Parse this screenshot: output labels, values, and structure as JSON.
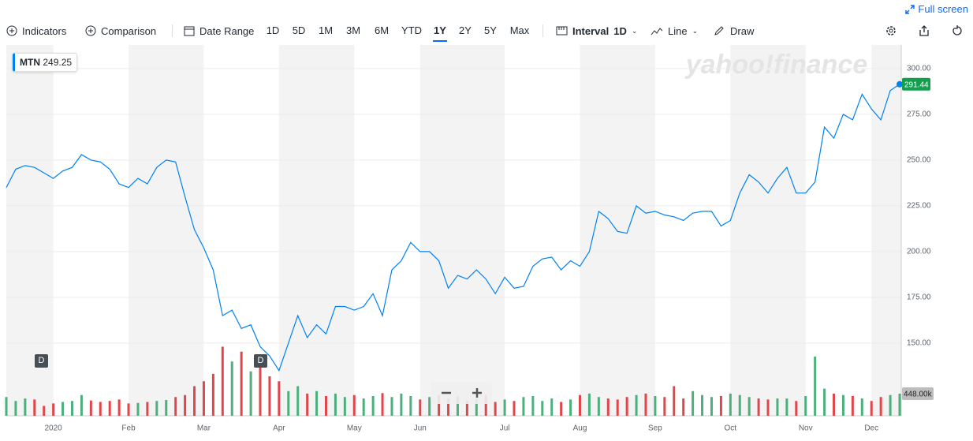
{
  "toolbar": {
    "indicators": "Indicators",
    "comparison": "Comparison",
    "date_range": {
      "label": "Date Range",
      "options": [
        "1D",
        "5D",
        "1M",
        "3M",
        "6M",
        "YTD",
        "1Y",
        "2Y",
        "5Y",
        "Max"
      ],
      "selected": "1Y"
    },
    "interval": {
      "label": "Interval",
      "value": "1D"
    },
    "chart_type": "Line",
    "draw": "Draw",
    "full_screen": "Full screen"
  },
  "watermark": "yahoo!finance",
  "tooltip": {
    "symbol": "MTN",
    "value": "249.25"
  },
  "events": [
    {
      "label": "D"
    },
    {
      "label": "D"
    }
  ],
  "chart_data": {
    "type": "line",
    "categories": [
      null,
      null,
      null,
      null,
      null,
      "2020",
      null,
      null,
      null,
      null,
      null,
      null,
      null,
      "Feb",
      null,
      null,
      null,
      null,
      null,
      null,
      null,
      "Mar",
      null,
      null,
      null,
      null,
      null,
      null,
      null,
      "Apr",
      null,
      null,
      null,
      null,
      null,
      null,
      null,
      "May",
      null,
      null,
      null,
      null,
      null,
      null,
      "Jun",
      null,
      null,
      null,
      null,
      null,
      null,
      null,
      null,
      "Jul",
      null,
      null,
      null,
      null,
      null,
      null,
      null,
      "Aug",
      null,
      null,
      null,
      null,
      null,
      null,
      null,
      "Sep",
      null,
      null,
      null,
      null,
      null,
      null,
      null,
      "Oct",
      null,
      null,
      null,
      null,
      null,
      null,
      null,
      "Nov",
      null,
      null,
      null,
      null,
      null,
      null,
      "Dec",
      null,
      null,
      null
    ],
    "series": [
      {
        "name": "MTN",
        "color": "#0081f2",
        "values": [
          235,
          245,
          247,
          246,
          243,
          240,
          244,
          246,
          253,
          250,
          249,
          245,
          237,
          235,
          240,
          237,
          246,
          250,
          249,
          230,
          212,
          202,
          190,
          165,
          168,
          158,
          160,
          148,
          143,
          135,
          150,
          165,
          153,
          160,
          155,
          170,
          170,
          168,
          170,
          177,
          165,
          190,
          195,
          205,
          200,
          200,
          195,
          180,
          187,
          185,
          190,
          185,
          177,
          186,
          180,
          181,
          192,
          196,
          197,
          190,
          195,
          192,
          200,
          222,
          218,
          211,
          210,
          225,
          221,
          222,
          220,
          219,
          217,
          221,
          222,
          222,
          214,
          217,
          232,
          242,
          238,
          232,
          240,
          246,
          232,
          232,
          238,
          268,
          262,
          275,
          272,
          286,
          278,
          272,
          288,
          291.44
        ]
      },
      {
        "name": "Volume",
        "axis": "y2",
        "up_color": "#4caf7d",
        "down_color": "#e0474c",
        "values": [
          380000,
          300000,
          350000,
          330000,
          200000,
          250000,
          280000,
          300000,
          420000,
          310000,
          280000,
          300000,
          330000,
          250000,
          260000,
          280000,
          300000,
          320000,
          380000,
          420000,
          600000,
          700000,
          850000,
          1400000,
          1100000,
          1300000,
          900000,
          1000000,
          800000,
          700000,
          500000,
          600000,
          450000,
          500000,
          400000,
          450000,
          380000,
          420000,
          350000,
          400000,
          460000,
          380000,
          450000,
          400000,
          330000,
          380000,
          420000,
          350000,
          400000,
          300000,
          350000,
          420000,
          280000,
          330000,
          300000,
          380000,
          400000,
          300000,
          350000,
          280000,
          330000,
          420000,
          450000,
          380000,
          350000,
          330000,
          380000,
          420000,
          450000,
          400000,
          380000,
          600000,
          350000,
          500000,
          420000,
          380000,
          400000,
          450000,
          420000,
          380000,
          350000,
          330000,
          350000,
          350000,
          300000,
          400000,
          1200000,
          550000,
          450000,
          420000,
          400000,
          350000,
          300000,
          380000,
          420000,
          448000
        ]
      }
    ],
    "ylim": [
      110.3,
      312.9
    ],
    "yticks": [
      {
        "value": 150,
        "label": "150.00"
      },
      {
        "value": 175,
        "label": "175.00"
      },
      {
        "value": 200,
        "label": "200.00"
      },
      {
        "value": 225,
        "label": "225.00"
      },
      {
        "value": 250,
        "label": "250.00"
      },
      {
        "value": 275,
        "label": "275.00"
      },
      {
        "value": 300,
        "label": "300.00"
      }
    ],
    "y2lim": [
      0,
      7520000
    ],
    "y2ticks": [
      {
        "value": 448000,
        "label": "448.00k"
      }
    ],
    "grid": true,
    "shade_color": "#f3f3f3"
  }
}
